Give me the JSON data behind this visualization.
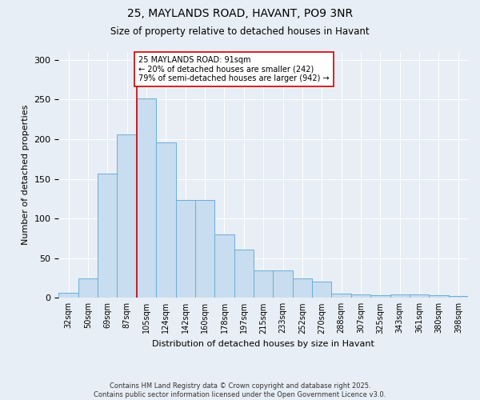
{
  "title1": "25, MAYLANDS ROAD, HAVANT, PO9 3NR",
  "title2": "Size of property relative to detached houses in Havant",
  "xlabel": "Distribution of detached houses by size in Havant",
  "ylabel": "Number of detached properties",
  "categories": [
    "32sqm",
    "50sqm",
    "69sqm",
    "87sqm",
    "105sqm",
    "124sqm",
    "142sqm",
    "160sqm",
    "178sqm",
    "197sqm",
    "215sqm",
    "233sqm",
    "252sqm",
    "270sqm",
    "288sqm",
    "307sqm",
    "325sqm",
    "343sqm",
    "361sqm",
    "380sqm",
    "398sqm"
  ],
  "values": [
    6,
    25,
    157,
    206,
    251,
    196,
    123,
    123,
    80,
    61,
    35,
    35,
    25,
    20,
    5,
    4,
    3,
    4,
    4,
    3,
    2
  ],
  "bar_color": "#c8ddef",
  "bar_edge_color": "#6aaed6",
  "vline_x_index": 3.5,
  "vline_color": "#cc0000",
  "annotation_text": "25 MAYLANDS ROAD: 91sqm\n← 20% of detached houses are smaller (242)\n79% of semi-detached houses are larger (942) →",
  "annotation_box_color": "#ffffff",
  "annotation_box_edge": "#cc0000",
  "footnote": "Contains HM Land Registry data © Crown copyright and database right 2025.\nContains public sector information licensed under the Open Government Licence v3.0.",
  "ylim": [
    0,
    310
  ],
  "background_color": "#e8eef5",
  "grid_color": "#ffffff"
}
